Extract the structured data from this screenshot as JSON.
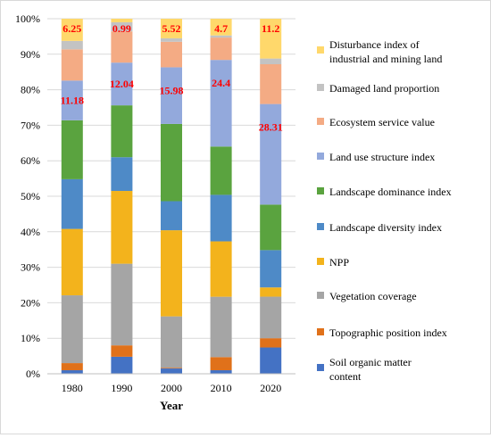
{
  "chart_data": {
    "type": "bar",
    "stacked": "percent",
    "xlabel": "Year",
    "ylabel": "",
    "categories": [
      "1980",
      "1990",
      "2000",
      "2010",
      "2020"
    ],
    "y_ticks": [
      "0%",
      "10%",
      "20%",
      "30%",
      "40%",
      "50%",
      "60%",
      "70%",
      "80%",
      "90%",
      "100%"
    ],
    "ylim": [
      0,
      100
    ],
    "legend_position": "right",
    "series": [
      {
        "name": "Soil organic matter content",
        "color": "#4472c4",
        "values": [
          1.0,
          4.8,
          1.5,
          1.0,
          7.4
        ]
      },
      {
        "name": "Topographic position index",
        "color": "#e0711a",
        "values": [
          2.0,
          3.2,
          0.2,
          3.7,
          2.6
        ]
      },
      {
        "name": "Vegetation coverage",
        "color": "#a5a5a5",
        "values": [
          19.1,
          23.0,
          14.5,
          17.0,
          11.7
        ]
      },
      {
        "name": "NPP",
        "color": "#f3b31c",
        "values": [
          18.7,
          20.5,
          24.3,
          15.6,
          2.6
        ]
      },
      {
        "name": "Landscape diversity index",
        "color": "#4e8ac7",
        "values": [
          14.0,
          9.5,
          8.2,
          13.1,
          10.5
        ]
      },
      {
        "name": "Landscape dominance index",
        "color": "#5aa33f",
        "values": [
          16.6,
          14.6,
          21.8,
          13.6,
          12.8
        ]
      },
      {
        "name": "Land use structure index",
        "color": "#93a9dc",
        "values": [
          11.18,
          12.04,
          15.98,
          24.4,
          28.31
        ]
      },
      {
        "name": "Ecosystem service value",
        "color": "#f4ab84",
        "values": [
          8.8,
          8.8,
          7.2,
          6.3,
          11.2
        ]
      },
      {
        "name": "Damaged land proportion",
        "color": "#c3c3c3",
        "values": [
          2.37,
          2.57,
          0.98,
          0.6,
          1.6
        ]
      },
      {
        "name": "Disturbance index of industrial and mining land",
        "color": "#ffd86b",
        "values": [
          6.25,
          0.99,
          5.52,
          4.7,
          11.2
        ]
      }
    ],
    "data_labels": [
      {
        "series": "Disturbance index of industrial and mining land",
        "values": [
          "6.25",
          "0.99",
          "5.52",
          "4.7",
          "11.2"
        ]
      },
      {
        "series": "Land use structure index",
        "values": [
          "11.18",
          "12.04",
          "15.98",
          "24.4",
          "28.31"
        ]
      }
    ],
    "data_label_color": "#ff0000"
  }
}
